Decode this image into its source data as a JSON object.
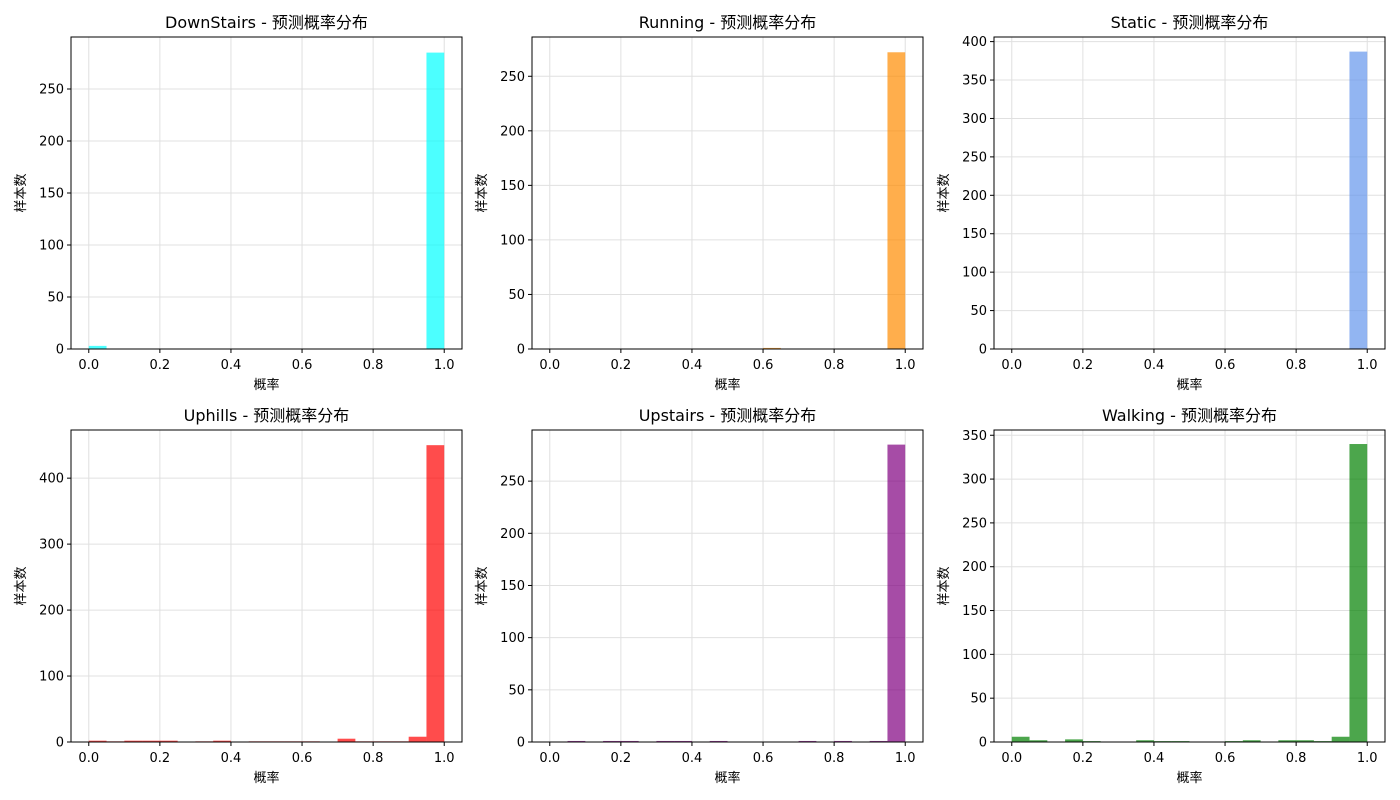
{
  "chart_data": [
    {
      "type": "histogram",
      "title": "DownStairs - 预测概率分布",
      "xlabel": "概率",
      "ylabel": "样本数",
      "color": "#00ffff",
      "bins": [
        0,
        0.05,
        0.1,
        0.15,
        0.2,
        0.25,
        0.3,
        0.35,
        0.4,
        0.45,
        0.5,
        0.55,
        0.6,
        0.65,
        0.7,
        0.75,
        0.8,
        0.85,
        0.9,
        0.95,
        1
      ],
      "values": [
        3,
        0,
        0,
        0,
        0,
        0,
        0,
        0,
        0,
        0,
        0,
        0,
        0,
        0,
        0,
        0,
        0,
        0,
        0,
        285
      ],
      "xlim": [
        -0.05,
        1.05
      ],
      "ylim": [
        0,
        300
      ],
      "xticks": [
        {
          "value": 0,
          "label": "0.0"
        },
        0.2,
        0.4,
        0.6,
        0.8,
        {
          "value": 1,
          "label": "1.0"
        }
      ],
      "yticks": [
        0,
        50,
        100,
        150,
        200,
        250
      ],
      "grid": true
    },
    {
      "type": "histogram",
      "title": "Running - 预测概率分布",
      "xlabel": "概率",
      "ylabel": "样本数",
      "color": "#ff8c00",
      "bins": [
        0,
        0.05,
        0.1,
        0.15,
        0.2,
        0.25,
        0.3,
        0.35,
        0.4,
        0.45,
        0.5,
        0.55,
        0.6,
        0.65,
        0.7,
        0.75,
        0.8,
        0.85,
        0.9,
        0.95,
        1
      ],
      "values": [
        0,
        0,
        0,
        0,
        0,
        0,
        0,
        0,
        0,
        0,
        0,
        0,
        1,
        0,
        0,
        0,
        0,
        0,
        0,
        272
      ],
      "xlim": [
        -0.05,
        1.05
      ],
      "ylim": [
        0,
        286
      ],
      "xticks": [
        {
          "value": 0,
          "label": "0.0"
        },
        0.2,
        0.4,
        0.6,
        0.8,
        {
          "value": 1,
          "label": "1.0"
        }
      ],
      "yticks": [
        0,
        50,
        100,
        150,
        200,
        250
      ],
      "grid": true
    },
    {
      "type": "histogram",
      "title": "Static - 预测概率分布",
      "xlabel": "概率",
      "ylabel": "样本数",
      "color": "#6495ed",
      "bins": [
        0,
        0.05,
        0.1,
        0.15,
        0.2,
        0.25,
        0.3,
        0.35,
        0.4,
        0.45,
        0.5,
        0.55,
        0.6,
        0.65,
        0.7,
        0.75,
        0.8,
        0.85,
        0.9,
        0.95,
        1
      ],
      "values": [
        0,
        0,
        0,
        0,
        0,
        0,
        0,
        0,
        0,
        0,
        0,
        0,
        0,
        0,
        0,
        0,
        0,
        0,
        0,
        387
      ],
      "xlim": [
        -0.05,
        1.05
      ],
      "ylim": [
        0,
        406
      ],
      "xticks": [
        {
          "value": 0,
          "label": "0.0"
        },
        0.2,
        0.4,
        0.6,
        0.8,
        {
          "value": 1,
          "label": "1.0"
        }
      ],
      "yticks": [
        0,
        50,
        100,
        150,
        200,
        250,
        300,
        350,
        400
      ],
      "grid": true
    },
    {
      "type": "histogram",
      "title": "Uphills - 预测概率分布",
      "xlabel": "概率",
      "ylabel": "样本数",
      "color": "#ff0000",
      "bins": [
        0,
        0.05,
        0.1,
        0.15,
        0.2,
        0.25,
        0.3,
        0.35,
        0.4,
        0.45,
        0.5,
        0.55,
        0.6,
        0.65,
        0.7,
        0.75,
        0.8,
        0.85,
        0.9,
        0.95,
        1
      ],
      "values": [
        2,
        1,
        2,
        2,
        2,
        0,
        1,
        2,
        0,
        1,
        1,
        1,
        1,
        0,
        5,
        1,
        1,
        1,
        8,
        450
      ],
      "xlim": [
        -0.05,
        1.05
      ],
      "ylim": [
        0,
        473
      ],
      "xticks": [
        {
          "value": 0,
          "label": "0.0"
        },
        0.2,
        0.4,
        0.6,
        0.8,
        {
          "value": 1,
          "label": "1.0"
        }
      ],
      "yticks": [
        0,
        100,
        200,
        300,
        400
      ],
      "grid": true
    },
    {
      "type": "histogram",
      "title": "Upstairs - 预测概率分布",
      "xlabel": "概率",
      "ylabel": "样本数",
      "color": "#800080",
      "bins": [
        0,
        0.05,
        0.1,
        0.15,
        0.2,
        0.25,
        0.3,
        0.35,
        0.4,
        0.45,
        0.5,
        0.55,
        0.6,
        0.65,
        0.7,
        0.75,
        0.8,
        0.85,
        0.9,
        0.95,
        1
      ],
      "values": [
        0,
        1,
        0,
        1,
        1,
        0,
        1,
        1,
        0,
        1,
        0,
        0,
        0,
        0,
        1,
        0,
        1,
        0,
        1,
        285
      ],
      "xlim": [
        -0.05,
        1.05
      ],
      "ylim": [
        0,
        299
      ],
      "xticks": [
        {
          "value": 0,
          "label": "0.0"
        },
        0.2,
        0.4,
        0.6,
        0.8,
        {
          "value": 1,
          "label": "1.0"
        }
      ],
      "yticks": [
        0,
        50,
        100,
        150,
        200,
        250
      ],
      "grid": true
    },
    {
      "type": "histogram",
      "title": "Walking - 预测概率分布",
      "xlabel": "概率",
      "ylabel": "样本数",
      "color": "#008000",
      "bins": [
        0,
        0.05,
        0.1,
        0.15,
        0.2,
        0.25,
        0.3,
        0.35,
        0.4,
        0.45,
        0.5,
        0.55,
        0.6,
        0.65,
        0.7,
        0.75,
        0.8,
        0.85,
        0.9,
        0.95,
        1
      ],
      "values": [
        6,
        2,
        0,
        3,
        1,
        0,
        0,
        2,
        1,
        1,
        0,
        0,
        1,
        2,
        0,
        2,
        2,
        1,
        6,
        340
      ],
      "xlim": [
        -0.05,
        1.05
      ],
      "ylim": [
        0,
        356
      ],
      "xticks": [
        {
          "value": 0,
          "label": "0.0"
        },
        0.2,
        0.4,
        0.6,
        0.8,
        {
          "value": 1,
          "label": "1.0"
        }
      ],
      "yticks": [
        0,
        50,
        100,
        150,
        200,
        250,
        300,
        350
      ],
      "grid": true
    }
  ]
}
